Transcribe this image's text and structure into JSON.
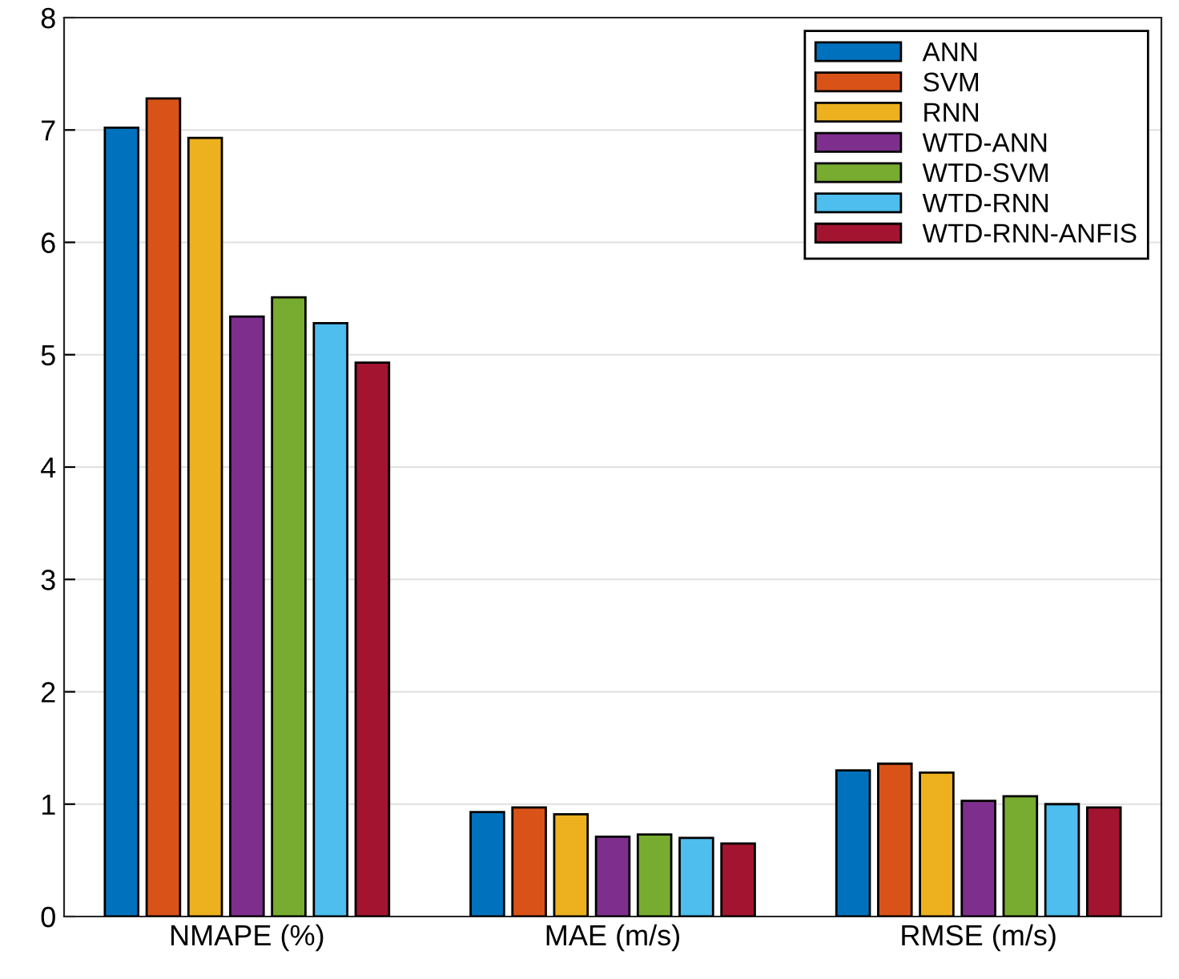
{
  "chart_data": {
    "type": "bar",
    "categories": [
      "NMAPE (%)",
      "MAE (m/s)",
      "RMSE (m/s)"
    ],
    "series": [
      {
        "name": "ANN",
        "color": "#0072bd",
        "values": [
          7.02,
          0.93,
          1.3
        ]
      },
      {
        "name": "SVM",
        "color": "#d95319",
        "values": [
          7.28,
          0.97,
          1.36
        ]
      },
      {
        "name": "RNN",
        "color": "#edb120",
        "values": [
          6.93,
          0.91,
          1.28
        ]
      },
      {
        "name": "WTD-ANN",
        "color": "#7e2f8e",
        "values": [
          5.34,
          0.71,
          1.03
        ]
      },
      {
        "name": "WTD-SVM",
        "color": "#77ac30",
        "values": [
          5.51,
          0.73,
          1.07
        ]
      },
      {
        "name": "WTD-RNN",
        "color": "#4dbeee",
        "values": [
          5.28,
          0.7,
          1.0
        ]
      },
      {
        "name": "WTD-RNN-ANFIS",
        "color": "#a2142f",
        "values": [
          4.93,
          0.65,
          0.97
        ]
      }
    ],
    "ylim": [
      0,
      8
    ],
    "yticks": [
      0,
      1,
      2,
      3,
      4,
      5,
      6,
      7,
      8
    ],
    "grid": "y",
    "legend": "top right"
  }
}
